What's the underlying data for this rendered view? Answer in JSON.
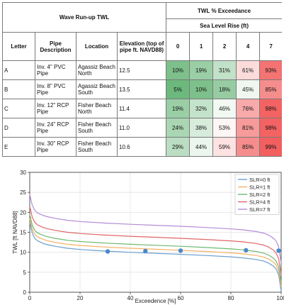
{
  "table": {
    "title": "Wave Run-up TWL",
    "exceedance_title": "TWL % Exceedance",
    "slr_title": "Sea Level Rise (ft)",
    "columns": {
      "letter": "Letter",
      "pipe": "Pipe Description",
      "location": "Location",
      "elevation": "Elevation (top of pipe ft. NAVD88)"
    },
    "slr_levels": [
      "0",
      "1",
      "2",
      "4",
      "7"
    ],
    "rows": [
      {
        "letter": "A",
        "pipe": "Inv. 4\" PVC Pipe",
        "location": "Agassiz Beach North",
        "elevation": "12.5",
        "pct": [
          "10%",
          "19%",
          "31%",
          "61%",
          "93%"
        ],
        "val": [
          10,
          19,
          31,
          61,
          93
        ]
      },
      {
        "letter": "B",
        "pipe": "Inv. 8\" PVC Pipe",
        "location": "Agassiz Beach South",
        "elevation": "13.5",
        "pct": [
          "5%",
          "10%",
          "18%",
          "45%",
          "85%"
        ],
        "val": [
          5,
          10,
          18,
          45,
          85
        ]
      },
      {
        "letter": "C",
        "pipe": "Inv. 12\" RCP Pipe",
        "location": "Fisher Beach North",
        "elevation": "11.4",
        "pct": [
          "19%",
          "32%",
          "46%",
          "76%",
          "98%"
        ],
        "val": [
          19,
          32,
          46,
          76,
          98
        ]
      },
      {
        "letter": "D",
        "pipe": "Inv. 24\" RCP Pipe",
        "location": "Fisher Beach South",
        "elevation": "11.0",
        "pct": [
          "24%",
          "38%",
          "53%",
          "81%",
          "98%"
        ],
        "val": [
          24,
          38,
          53,
          81,
          98
        ]
      },
      {
        "letter": "E",
        "pipe": "Inv. 30\" RCP Pipe",
        "location": "Fisher Beach South",
        "elevation": "10.6",
        "pct": [
          "29%",
          "44%",
          "59%",
          "85%",
          "99%"
        ],
        "val": [
          29,
          44,
          59,
          85,
          99
        ]
      }
    ]
  },
  "chart_data": {
    "type": "line",
    "title": "",
    "xlabel": "Exceedence [%]",
    "ylabel": "TWL [ft NAVD88]",
    "xlim": [
      0,
      100
    ],
    "ylim": [
      0,
      30
    ],
    "xticks": [
      0,
      20,
      40,
      60,
      80,
      100
    ],
    "yticks": [
      0,
      5,
      10,
      15,
      20,
      25,
      30
    ],
    "grid": true,
    "legend_position": "top-right",
    "x": [
      0,
      1,
      2,
      3,
      5,
      7,
      10,
      15,
      20,
      30,
      40,
      50,
      60,
      70,
      80,
      85,
      90,
      93,
      95,
      97,
      98,
      99,
      100
    ],
    "series": [
      {
        "name": "SLR=0 ft",
        "color": "#6a9fd0",
        "values": [
          17.5,
          14.8,
          13.5,
          12.9,
          12.3,
          11.9,
          11.5,
          11.0,
          10.7,
          10.3,
          10.0,
          9.75,
          9.5,
          9.2,
          8.85,
          8.6,
          8.2,
          7.8,
          7.3,
          6.5,
          5.8,
          4.4,
          0.3
        ]
      },
      {
        "name": "SLR=1 ft",
        "color": "#f2b266",
        "values": [
          18.5,
          15.8,
          14.5,
          13.9,
          13.3,
          12.9,
          12.5,
          12.0,
          11.7,
          11.3,
          11.0,
          10.75,
          10.5,
          10.2,
          9.85,
          9.6,
          9.2,
          8.8,
          8.3,
          7.5,
          6.8,
          5.4,
          1.3
        ]
      },
      {
        "name": "SLR=2 ft",
        "color": "#6fb86f",
        "values": [
          19.5,
          16.8,
          15.5,
          14.9,
          14.3,
          13.9,
          13.5,
          13.0,
          12.7,
          12.3,
          12.0,
          11.75,
          11.5,
          11.2,
          10.85,
          10.6,
          10.2,
          9.8,
          9.3,
          8.5,
          7.8,
          6.4,
          2.3
        ]
      },
      {
        "name": "SLR=4 ft",
        "color": "#e06666",
        "values": [
          21.5,
          18.8,
          17.5,
          16.9,
          16.3,
          15.9,
          15.5,
          15.0,
          14.7,
          14.3,
          14.0,
          13.75,
          13.5,
          13.2,
          12.85,
          12.6,
          12.2,
          11.8,
          11.3,
          10.5,
          9.8,
          8.4,
          4.3
        ]
      },
      {
        "name": "SLR=7 ft",
        "color": "#b48cd6",
        "values": [
          24.5,
          21.8,
          20.5,
          19.9,
          19.3,
          18.9,
          18.5,
          18.0,
          17.7,
          17.3,
          17.0,
          16.75,
          16.5,
          16.2,
          15.85,
          15.6,
          15.2,
          14.8,
          14.3,
          13.5,
          12.8,
          11.4,
          7.3
        ]
      }
    ],
    "markers": {
      "color": "#4a88c8",
      "points": [
        {
          "x": 31,
          "y": 10.2
        },
        {
          "x": 46,
          "y": 10.3
        },
        {
          "x": 60,
          "y": 10.4
        },
        {
          "x": 86,
          "y": 10.5
        },
        {
          "x": 99,
          "y": 10.4
        }
      ]
    }
  }
}
